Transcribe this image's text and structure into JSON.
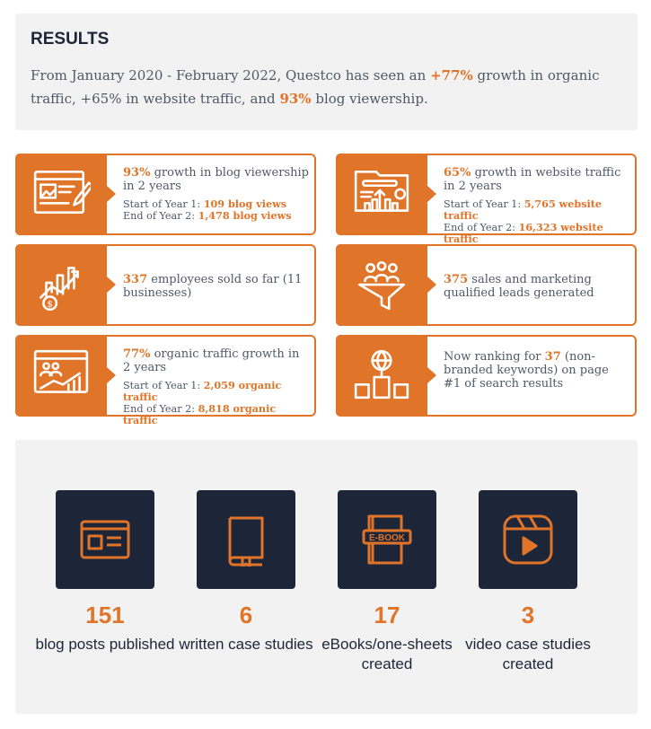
{
  "results": {
    "title": "RESULTS",
    "intro_1": "From January 2020 - February 2022, Questco has seen an ",
    "intro_h1": "+77%",
    "intro_2": " growth in organic traffic, +65% in website traffic, and ",
    "intro_h2": "93%",
    "intro_3": " blog viewership."
  },
  "colors": {
    "accent": "#e07428",
    "dark": "#1d2539",
    "panel": "#f2f2f2"
  },
  "cards": [
    {
      "icon": "blog-edit-icon",
      "highlight": "93%",
      "text": " growth in blog viewership in 2 years",
      "l1": "Start of Year 1: ",
      "v1": "109 blog views",
      "l2": "End of Year 2: ",
      "v2": "1,478 blog views"
    },
    {
      "icon": "website-chart-icon",
      "highlight": "65%",
      "text": " growth in website traffic in 2 years",
      "l1": "Start of Year 1: ",
      "v1": "5,765 website traffic",
      "l2": "End of Year 2: ",
      "v2": "16,323 website traffic"
    },
    {
      "icon": "sales-growth-icon",
      "highlight": "337",
      "text": " employees sold so far (11 businesses)"
    },
    {
      "icon": "lead-funnel-icon",
      "highlight": "375",
      "text": " sales and marketing qualified leads generated"
    },
    {
      "icon": "organic-traffic-icon",
      "highlight": "77%",
      "text": " organic traffic growth in 2 years",
      "l1": "Start of Year 1: ",
      "v1": "2,059 organic traffic",
      "l2": "End of Year 2: ",
      "v2": "8,818 organic traffic"
    },
    {
      "icon": "globe-ranking-icon",
      "pre": "Now ranking for ",
      "highlight": "37",
      "text": " (non-branded keywords) on page #1 of search results"
    }
  ],
  "stats": [
    {
      "icon": "blog-post-icon",
      "value": "151",
      "label": "blog posts published"
    },
    {
      "icon": "book-icon",
      "value": "6",
      "label": "written case studies"
    },
    {
      "icon": "ebook-icon",
      "value": "17",
      "label": "eBooks/one-sheets created",
      "badge": "E-BOOK"
    },
    {
      "icon": "video-icon",
      "value": "3",
      "label": "video case studies created"
    }
  ]
}
